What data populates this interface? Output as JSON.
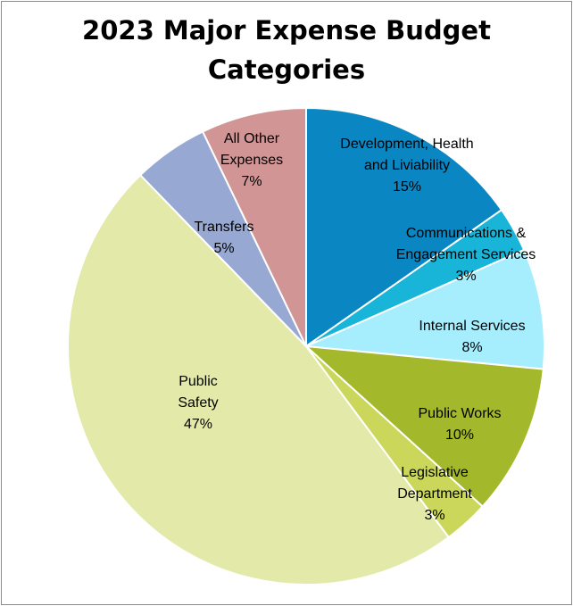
{
  "chart_data": {
    "type": "pie",
    "title_lines": [
      "2023 Major Expense Budget",
      "Categories"
    ],
    "start_angle_deg": 0,
    "direction": "clockwise",
    "slices": [
      {
        "label_lines": [
          "Development, Health",
          "and Liviability"
        ],
        "pct_label": "15%",
        "value": 15,
        "color": "#0a86c2"
      },
      {
        "label_lines": [
          "Communications &",
          "Engagement Services"
        ],
        "pct_label": "3%",
        "value": 3,
        "color": "#18b5d9"
      },
      {
        "label_lines": [
          "Internal Services"
        ],
        "pct_label": "8%",
        "value": 8,
        "color": "#a6eefd"
      },
      {
        "label_lines": [
          "Public Works"
        ],
        "pct_label": "10%",
        "value": 10,
        "color": "#a3b82a"
      },
      {
        "label_lines": [
          "Legislative",
          "Department"
        ],
        "pct_label": "3%",
        "value": 3,
        "color": "#cad75a"
      },
      {
        "label_lines": [
          "Public",
          "Safety"
        ],
        "pct_label": "47%",
        "value": 47,
        "color": "#e3eaa9"
      },
      {
        "label_lines": [
          "Transfers"
        ],
        "pct_label": "5%",
        "value": 5,
        "color": "#97a9d3"
      },
      {
        "label_lines": [
          "All Other",
          "Expenses"
        ],
        "pct_label": "7%",
        "value": 7,
        "color": "#d29595"
      }
    ]
  }
}
